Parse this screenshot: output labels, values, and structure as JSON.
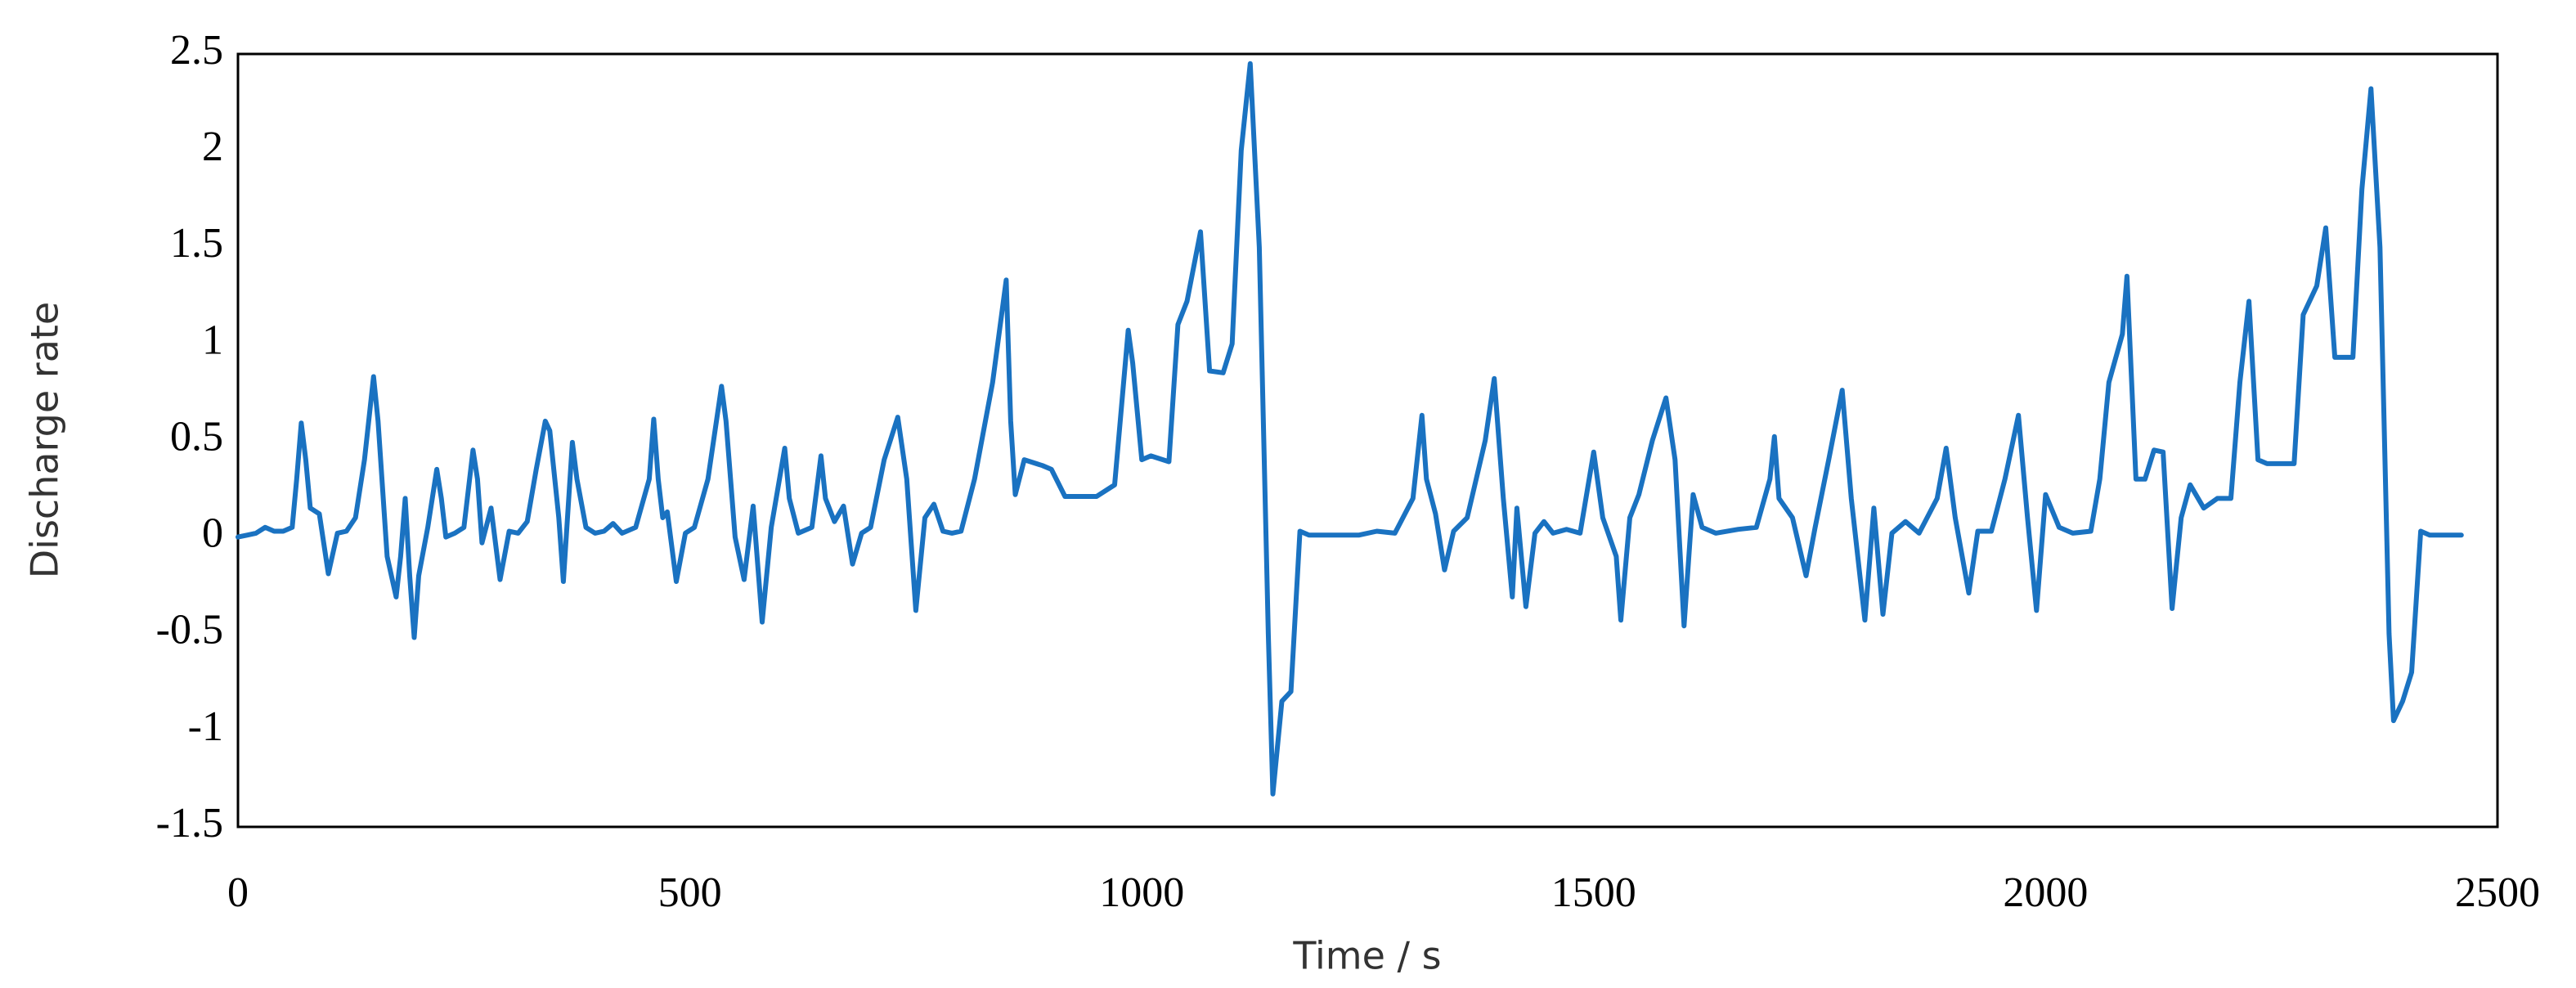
{
  "chart_data": {
    "type": "line",
    "x_label": "Time / s",
    "y_label": "Discharge rate",
    "x": [
      0,
      10,
      20,
      30,
      40,
      50,
      60,
      65,
      70,
      75,
      80,
      90,
      100,
      110,
      120,
      130,
      140,
      150,
      155,
      165,
      175,
      180,
      185,
      190,
      195,
      200,
      210,
      220,
      225,
      230,
      240,
      250,
      260,
      265,
      270,
      280,
      290,
      300,
      310,
      320,
      330,
      340,
      345,
      355,
      360,
      370,
      375,
      385,
      395,
      405,
      415,
      425,
      440,
      455,
      460,
      465,
      470,
      475,
      485,
      495,
      505,
      520,
      535,
      540,
      550,
      560,
      570,
      580,
      590,
      605,
      610,
      620,
      635,
      645,
      650,
      660,
      670,
      680,
      690,
      700,
      715,
      730,
      740,
      750,
      760,
      770,
      780,
      790,
      800,
      815,
      835,
      850,
      855,
      860,
      870,
      890,
      900,
      915,
      950,
      970,
      985,
      990,
      1000,
      1010,
      1030,
      1040,
      1050,
      1065,
      1075,
      1090,
      1100,
      1110,
      1120,
      1130,
      1140,
      1145,
      1155,
      1165,
      1175,
      1185,
      1200,
      1240,
      1260,
      1280,
      1300,
      1310,
      1315,
      1325,
      1335,
      1345,
      1360,
      1380,
      1390,
      1400,
      1410,
      1415,
      1425,
      1435,
      1445,
      1455,
      1470,
      1485,
      1500,
      1510,
      1525,
      1530,
      1540,
      1550,
      1565,
      1580,
      1590,
      1600,
      1610,
      1620,
      1635,
      1660,
      1680,
      1695,
      1700,
      1705,
      1720,
      1735,
      1745,
      1760,
      1775,
      1785,
      1800,
      1810,
      1820,
      1830,
      1845,
      1860,
      1880,
      1890,
      1900,
      1915,
      1925,
      1940,
      1955,
      1970,
      1980,
      1990,
      2000,
      2015,
      2030,
      2050,
      2060,
      2070,
      2085,
      2090,
      2100,
      2110,
      2120,
      2130,
      2140,
      2150,
      2160,
      2175,
      2190,
      2205,
      2215,
      2225,
      2235,
      2245,
      2260,
      2275,
      2285,
      2300,
      2310,
      2320,
      2340,
      2350,
      2360,
      2370,
      2380,
      2385,
      2395,
      2405,
      2415,
      2425,
      2460
    ],
    "values": [
      0,
      0.01,
      0.02,
      0.05,
      0.03,
      0.03,
      0.05,
      0.3,
      0.59,
      0.4,
      0.15,
      0.12,
      -0.19,
      0.02,
      0.03,
      0.1,
      0.4,
      0.83,
      0.6,
      -0.1,
      -0.31,
      -0.1,
      0.2,
      -0.2,
      -0.52,
      -0.2,
      0.05,
      0.35,
      0.2,
      0,
      0.02,
      0.05,
      0.45,
      0.3,
      -0.03,
      0.15,
      -0.22,
      0.03,
      0.02,
      0.08,
      0.35,
      0.6,
      0.55,
      0.1,
      -0.23,
      0.49,
      0.3,
      0.05,
      0.02,
      0.03,
      0.07,
      0.02,
      0.05,
      0.3,
      0.61,
      0.3,
      0.1,
      0.13,
      -0.23,
      0.02,
      0.05,
      0.3,
      0.78,
      0.6,
      0,
      -0.22,
      0.16,
      -0.44,
      0.05,
      0.46,
      0.2,
      0.02,
      0.05,
      0.42,
      0.2,
      0.08,
      0.16,
      -0.14,
      0.02,
      0.05,
      0.4,
      0.62,
      0.3,
      -0.38,
      0.1,
      0.17,
      0.03,
      0.02,
      0.03,
      0.3,
      0.8,
      1.33,
      0.6,
      0.22,
      0.4,
      0.37,
      0.35,
      0.21,
      0.21,
      0.27,
      1.07,
      0.9,
      0.4,
      0.42,
      0.39,
      1.1,
      1.22,
      1.58,
      0.86,
      0.85,
      1,
      2,
      2.45,
      1.5,
      -0.5,
      -1.33,
      -0.85,
      -0.8,
      0.03,
      0.01,
      0.01,
      0.01,
      0.03,
      0.02,
      0.2,
      0.63,
      0.3,
      0.12,
      -0.17,
      0.03,
      0.1,
      0.5,
      0.82,
      0.2,
      -0.31,
      0.15,
      -0.36,
      0.02,
      0.08,
      0.02,
      0.04,
      0.02,
      0.44,
      0.1,
      -0.1,
      -0.43,
      0.1,
      0.22,
      0.5,
      0.72,
      0.4,
      -0.46,
      0.22,
      0.05,
      0.02,
      0.04,
      0.05,
      0.3,
      0.52,
      0.2,
      0.1,
      -0.2,
      0.05,
      0.4,
      0.76,
      0.2,
      -0.43,
      0.15,
      -0.4,
      0.02,
      0.08,
      0.02,
      0.2,
      0.46,
      0.1,
      -0.29,
      0.03,
      0.03,
      0.3,
      0.63,
      0.1,
      -0.38,
      0.22,
      0.05,
      0.02,
      0.03,
      0.3,
      0.8,
      1.05,
      1.35,
      0.3,
      0.3,
      0.45,
      0.44,
      -0.37,
      0.1,
      0.27,
      0.15,
      0.2,
      0.2,
      0.8,
      1.22,
      0.4,
      0.38,
      0.38,
      0.38,
      1.15,
      1.3,
      1.6,
      0.93,
      0.93,
      1.8,
      2.32,
      1.5,
      -0.5,
      -0.95,
      -0.85,
      -0.7,
      0.03,
      0.01,
      0.01
    ],
    "color": "#1a72c1",
    "xlim": [
      0,
      2500
    ],
    "xticks": [
      0,
      500,
      1000,
      1500,
      2000,
      2500
    ],
    "ylim": [
      -1.5,
      2.5
    ],
    "yticks": [
      -1.5,
      -1,
      -0.5,
      0,
      0.5,
      1,
      1.5,
      2,
      2.5
    ]
  }
}
